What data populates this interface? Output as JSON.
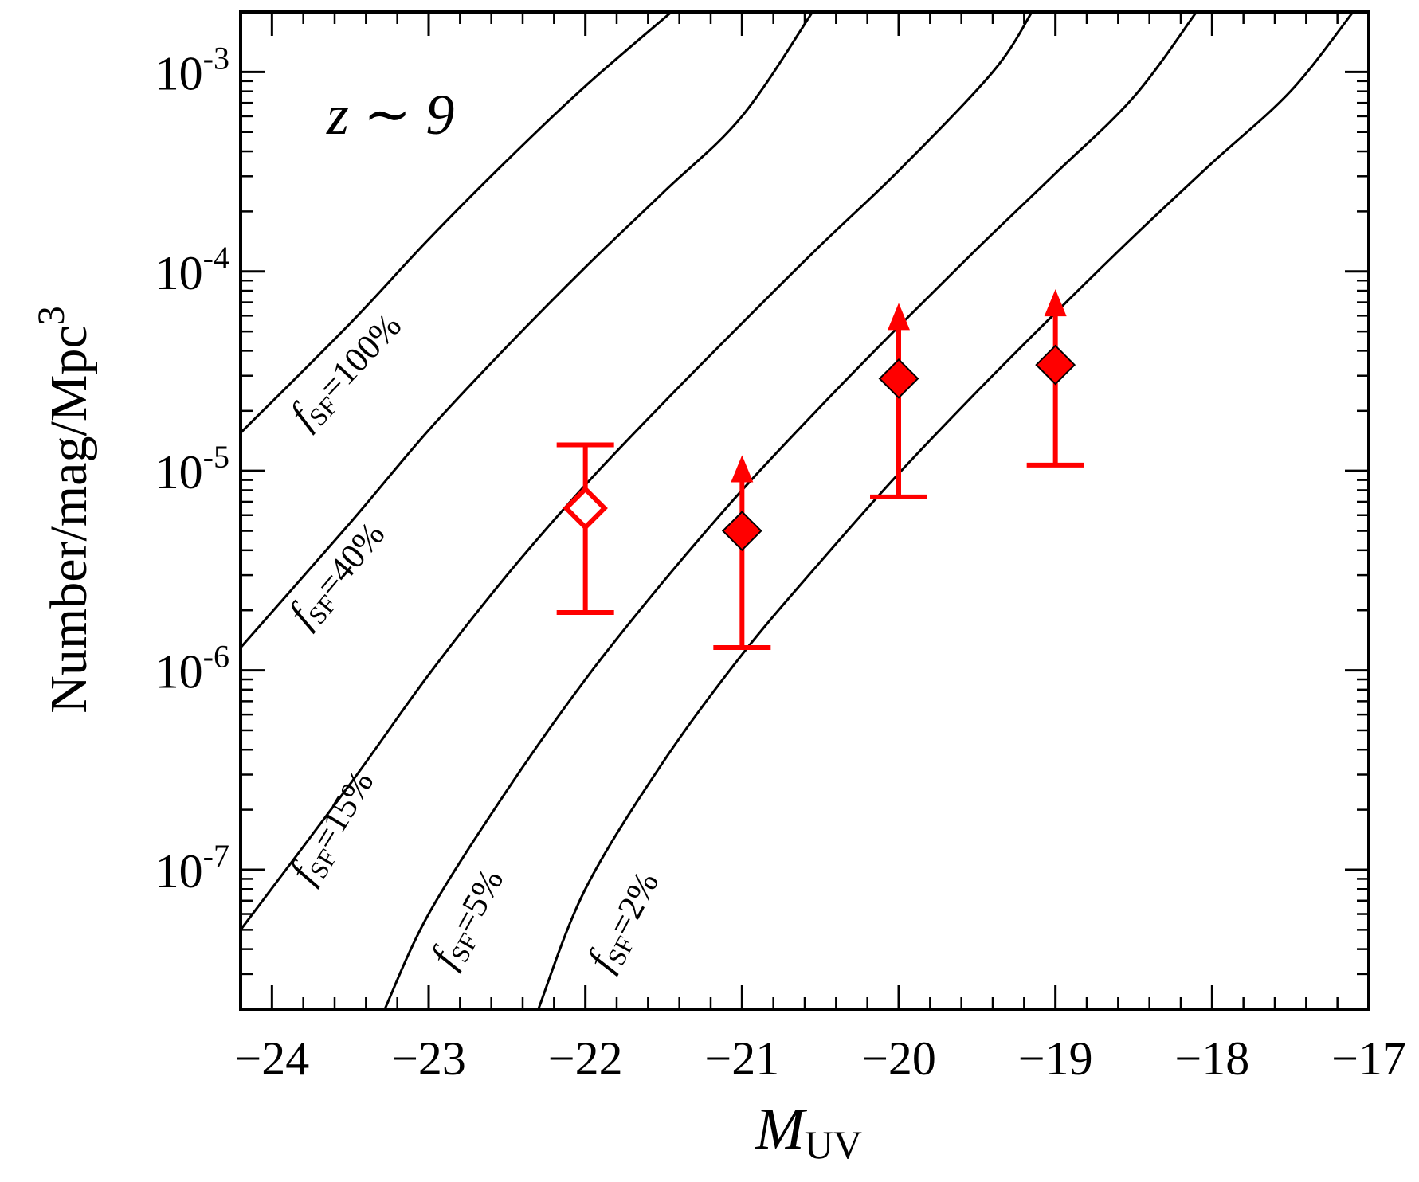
{
  "chart_data": {
    "type": "scatter",
    "annotation": "z ∼ 9",
    "xlabel": {
      "main": "M",
      "sub": "UV"
    },
    "ylabel": {
      "main": "Number/mag/Mpc",
      "sup": "3"
    },
    "xlim": [
      -24.2,
      -17
    ],
    "ylim": [
      2e-08,
      0.002
    ],
    "yscale": "log",
    "grid": false,
    "x_ticks": [
      -24,
      -23,
      -22,
      -21,
      -20,
      -19,
      -18,
      -17
    ],
    "x_tick_labels": [
      "−24",
      "−23",
      "−22",
      "−21",
      "−20",
      "−19",
      "−18",
      "−17"
    ],
    "y_ticks": [
      {
        "value": 1e-07,
        "base": "10",
        "exp": "-7"
      },
      {
        "value": 1e-06,
        "base": "10",
        "exp": "-6"
      },
      {
        "value": 1e-05,
        "base": "10",
        "exp": "-5"
      },
      {
        "value": 0.0001,
        "base": "10",
        "exp": "-4"
      },
      {
        "value": 0.001,
        "base": "10",
        "exp": "-3"
      }
    ],
    "curves": [
      {
        "label_sub": "SF",
        "label_val": "=100%",
        "color": "#000000",
        "points": [
          [
            -24.2,
            1.55e-05
          ],
          [
            -23.5,
            5.5e-05
          ],
          [
            -23.0,
            0.000145
          ],
          [
            -22.5,
            0.00036
          ],
          [
            -22.0,
            0.00085
          ],
          [
            -21.45,
            0.002
          ]
        ]
      },
      {
        "label_sub": "SF",
        "label_val": "=40%",
        "color": "#000000",
        "points": [
          [
            -24.2,
            1.3e-06
          ],
          [
            -23.5,
            5.5e-06
          ],
          [
            -23.0,
            1.6e-05
          ],
          [
            -22.5,
            4.2e-05
          ],
          [
            -22.0,
            0.000105
          ],
          [
            -21.5,
            0.00025
          ],
          [
            -21.0,
            0.0006
          ],
          [
            -20.55,
            0.002
          ]
        ]
      },
      {
        "label_sub": "SF",
        "label_val": "=15%",
        "color": "#000000",
        "points": [
          [
            -24.2,
            5e-08
          ],
          [
            -23.5,
            2.7e-07
          ],
          [
            -23.0,
            9.5e-07
          ],
          [
            -22.5,
            3e-06
          ],
          [
            -22.0,
            8.5e-06
          ],
          [
            -21.5,
            2.2e-05
          ],
          [
            -21.0,
            5.5e-05
          ],
          [
            -20.5,
            0.000135
          ],
          [
            -20.0,
            0.00032
          ],
          [
            -19.4,
            0.001
          ],
          [
            -19.15,
            0.002
          ]
        ]
      },
      {
        "label_sub": "SF",
        "label_val": "=5%",
        "color": "#000000",
        "points": [
          [
            -23.28,
            2e-08
          ],
          [
            -23.0,
            6e-08
          ],
          [
            -22.5,
            2.5e-07
          ],
          [
            -22.0,
            9e-07
          ],
          [
            -21.5,
            2.8e-06
          ],
          [
            -21.0,
            8e-06
          ],
          [
            -20.5,
            2.1e-05
          ],
          [
            -20.0,
            5.3e-05
          ],
          [
            -19.5,
            0.00013
          ],
          [
            -19.0,
            0.00031
          ],
          [
            -18.5,
            0.00075
          ],
          [
            -18.1,
            0.002
          ]
        ]
      },
      {
        "label_sub": "SF",
        "label_val": "=2%",
        "color": "#000000",
        "points": [
          [
            -22.3,
            2e-08
          ],
          [
            -22.0,
            8e-08
          ],
          [
            -21.5,
            3.5e-07
          ],
          [
            -21.0,
            1.2e-06
          ],
          [
            -20.5,
            3.5e-06
          ],
          [
            -20.0,
            9.7e-06
          ],
          [
            -19.5,
            2.5e-05
          ],
          [
            -19.0,
            6.2e-05
          ],
          [
            -18.5,
            0.00015
          ],
          [
            -18.0,
            0.00035
          ],
          [
            -17.5,
            0.0008
          ],
          [
            -17.1,
            0.002
          ]
        ]
      }
    ],
    "series": [
      {
        "color": "#ff0000",
        "points": [
          {
            "x": -22,
            "y": 6.5e-06,
            "y_low": 1.95e-06,
            "y_high": 1.35e-05,
            "filled": false,
            "lower_limit": false
          },
          {
            "x": -21,
            "y": 5e-06,
            "y_low": 1.3e-06,
            "filled": true,
            "lower_limit": true
          },
          {
            "x": -20,
            "y": 2.9e-05,
            "y_low": 7.4e-06,
            "filled": true,
            "lower_limit": true
          },
          {
            "x": -19,
            "y": 3.4e-05,
            "y_low": 1.07e-05,
            "filled": true,
            "lower_limit": true
          }
        ]
      }
    ]
  }
}
